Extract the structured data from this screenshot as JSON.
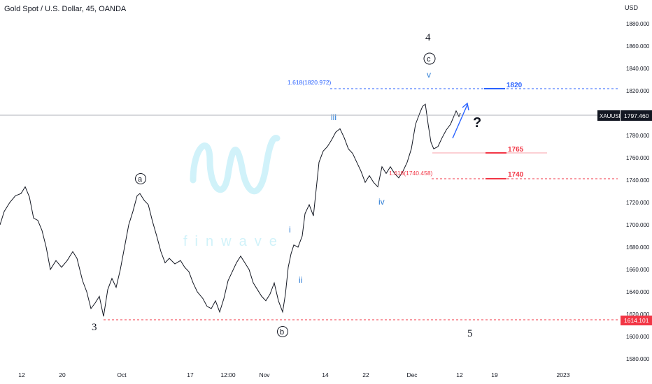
{
  "header": {
    "symbol_title": "Gold Spot / U.S. Dollar, 45, OANDA"
  },
  "axis": {
    "currency": "USD",
    "y_ticks": [
      "1880.000",
      "1860.000",
      "1840.000",
      "1820.000",
      "1800.000",
      "1780.000",
      "1760.000",
      "1740.000",
      "1720.000",
      "1700.000",
      "1680.000",
      "1660.000",
      "1640.000",
      "1620.000",
      "1600.000",
      "1580.000"
    ],
    "x_ticks": [
      "12",
      "20",
      "Oct",
      "17",
      "12:00",
      "Nov",
      "14",
      "22",
      "Dec",
      "12",
      "19",
      "2023"
    ]
  },
  "price_tags": {
    "current_symbol": "XAUUSD",
    "current_price": "1797.460",
    "level_price": "1614.101"
  },
  "watermark": {
    "text": "finwave"
  },
  "colors": {
    "candles": "#131722",
    "blue": "#2962ff",
    "red": "#f23645",
    "wave_blue": "#2a7bd4",
    "grid": "#b2b5be"
  },
  "annotations": {
    "w3": "3",
    "wa": "a",
    "wb": "b",
    "w4": "4",
    "wc": "c",
    "wv": "v",
    "w5": "5",
    "wi": "i",
    "wii": "ii",
    "wiii": "iii",
    "wiv": "iv",
    "fib_blue": "1.618(1820.972)",
    "fib_red": "1.618(1740.458)",
    "t1820": "1820",
    "t1765": "1765",
    "t1740": "1740",
    "question": "?"
  },
  "chart_data": {
    "type": "line",
    "title": "Gold Spot / U.S. Dollar, 45, OANDA",
    "xlabel": "",
    "ylabel": "USD",
    "ylim": [
      1572,
      1890
    ],
    "x_tick_labels": [
      "12",
      "20",
      "Oct",
      "17",
      "12:00",
      "Nov",
      "14",
      "22",
      "Dec",
      "12",
      "19",
      "2023"
    ],
    "price_path": [
      [
        0,
        1700
      ],
      [
        6,
        1712
      ],
      [
        14,
        1720
      ],
      [
        22,
        1726
      ],
      [
        30,
        1728
      ],
      [
        36,
        1734
      ],
      [
        42,
        1725
      ],
      [
        48,
        1706
      ],
      [
        54,
        1704
      ],
      [
        60,
        1695
      ],
      [
        66,
        1680
      ],
      [
        72,
        1660
      ],
      [
        80,
        1668
      ],
      [
        88,
        1662
      ],
      [
        96,
        1668
      ],
      [
        104,
        1676
      ],
      [
        110,
        1670
      ],
      [
        118,
        1650
      ],
      [
        124,
        1640
      ],
      [
        130,
        1625
      ],
      [
        136,
        1630
      ],
      [
        142,
        1636
      ],
      [
        148,
        1618
      ],
      [
        154,
        1642
      ],
      [
        160,
        1652
      ],
      [
        166,
        1644
      ],
      [
        172,
        1660
      ],
      [
        178,
        1680
      ],
      [
        184,
        1700
      ],
      [
        190,
        1712
      ],
      [
        196,
        1726
      ],
      [
        200,
        1728
      ],
      [
        206,
        1722
      ],
      [
        212,
        1718
      ],
      [
        218,
        1703
      ],
      [
        224,
        1690
      ],
      [
        230,
        1676
      ],
      [
        236,
        1666
      ],
      [
        242,
        1670
      ],
      [
        250,
        1665
      ],
      [
        258,
        1668
      ],
      [
        264,
        1662
      ],
      [
        270,
        1658
      ],
      [
        276,
        1648
      ],
      [
        282,
        1640
      ],
      [
        290,
        1634
      ],
      [
        296,
        1627
      ],
      [
        302,
        1625
      ],
      [
        308,
        1632
      ],
      [
        314,
        1622
      ],
      [
        320,
        1634
      ],
      [
        326,
        1650
      ],
      [
        332,
        1658
      ],
      [
        338,
        1666
      ],
      [
        344,
        1672
      ],
      [
        350,
        1666
      ],
      [
        356,
        1660
      ],
      [
        362,
        1648
      ],
      [
        368,
        1642
      ],
      [
        374,
        1636
      ],
      [
        380,
        1632
      ],
      [
        386,
        1638
      ],
      [
        392,
        1648
      ],
      [
        398,
        1632
      ],
      [
        404,
        1622
      ],
      [
        408,
        1638
      ],
      [
        412,
        1662
      ],
      [
        416,
        1674
      ],
      [
        420,
        1682
      ],
      [
        426,
        1680
      ],
      [
        432,
        1690
      ],
      [
        436,
        1710
      ],
      [
        442,
        1718
      ],
      [
        448,
        1708
      ],
      [
        452,
        1732
      ],
      [
        456,
        1756
      ],
      [
        462,
        1766
      ],
      [
        468,
        1770
      ],
      [
        474,
        1776
      ],
      [
        480,
        1783
      ],
      [
        486,
        1786
      ],
      [
        492,
        1778
      ],
      [
        498,
        1768
      ],
      [
        504,
        1764
      ],
      [
        510,
        1756
      ],
      [
        516,
        1748
      ],
      [
        522,
        1738
      ],
      [
        528,
        1744
      ],
      [
        534,
        1738
      ],
      [
        540,
        1734
      ],
      [
        546,
        1752
      ],
      [
        552,
        1746
      ],
      [
        558,
        1752
      ],
      [
        564,
        1746
      ],
      [
        570,
        1742
      ],
      [
        576,
        1748
      ],
      [
        582,
        1756
      ],
      [
        588,
        1768
      ],
      [
        594,
        1790
      ],
      [
        600,
        1800
      ],
      [
        604,
        1806
      ],
      [
        608,
        1808
      ],
      [
        612,
        1790
      ],
      [
        616,
        1774
      ],
      [
        620,
        1768
      ],
      [
        626,
        1770
      ],
      [
        632,
        1778
      ],
      [
        638,
        1785
      ],
      [
        644,
        1790
      ],
      [
        648,
        1796
      ],
      [
        652,
        1802
      ],
      [
        656,
        1797
      ],
      [
        658,
        1800
      ]
    ],
    "levels": [
      {
        "label": "1.618(1820.972)",
        "value": 1820.972
      },
      {
        "label": "1820",
        "value": 1820
      },
      {
        "label": "1765",
        "value": 1765
      },
      {
        "label": "1.618(1740.458)",
        "value": 1740.458
      },
      {
        "label": "1740",
        "value": 1740
      },
      {
        "label": "1614.101",
        "value": 1614.101
      },
      {
        "label": "1797.460",
        "value": 1797.46
      }
    ]
  }
}
